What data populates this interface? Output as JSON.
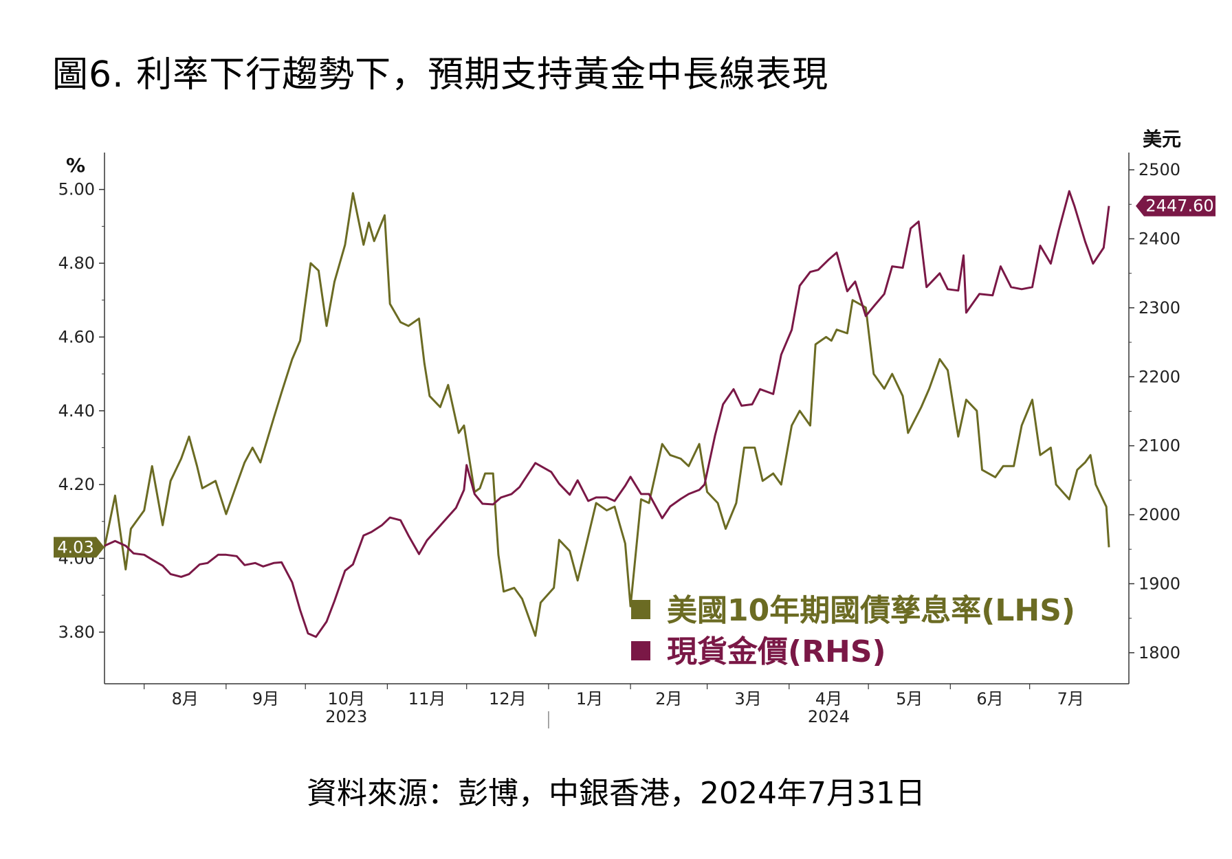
{
  "title": "圖6. 利率下行趨勢下，預期支持黃金中長線表現",
  "source": "資料來源：彭博，中銀香港，2024年7月31日",
  "colors": {
    "yield": "#6b6b23",
    "gold": "#7a1846",
    "axis": "#333333"
  },
  "chart_data": {
    "type": "line",
    "x_tick_labels": [
      "8月",
      "9月",
      "10月",
      "11月",
      "12月",
      "1月",
      "2月",
      "3月",
      "4月",
      "5月",
      "6月",
      "7月"
    ],
    "year_labels": [
      "2023",
      "2024"
    ],
    "left_axis": {
      "unit": "%",
      "ticks": [
        "3.80",
        "4.00",
        "4.20",
        "4.40",
        "4.60",
        "4.80",
        "5.00"
      ],
      "ylim": [
        3.66,
        5.1
      ]
    },
    "right_axis": {
      "unit": "美元",
      "ticks": [
        "1800",
        "1900",
        "2000",
        "2100",
        "2200",
        "2300",
        "2400",
        "2500"
      ],
      "ylim": [
        1755,
        2525
      ]
    },
    "last_value_tags": {
      "yield": "4.03",
      "gold": "2447.60"
    },
    "x_range": [
      "2023-07-17",
      "2024-07-31"
    ],
    "series": [
      {
        "name": "美國10年期國債孳息率(LHS)",
        "axis": "left",
        "points": [
          [
            "2023-07-17",
            4.03
          ],
          [
            "2023-07-21",
            4.17
          ],
          [
            "2023-07-25",
            3.97
          ],
          [
            "2023-07-27",
            4.08
          ],
          [
            "2023-08-01",
            4.13
          ],
          [
            "2023-08-04",
            4.25
          ],
          [
            "2023-08-08",
            4.09
          ],
          [
            "2023-08-11",
            4.21
          ],
          [
            "2023-08-15",
            4.27
          ],
          [
            "2023-08-18",
            4.33
          ],
          [
            "2023-08-21",
            4.25
          ],
          [
            "2023-08-23",
            4.19
          ],
          [
            "2023-08-28",
            4.21
          ],
          [
            "2023-09-01",
            4.12
          ],
          [
            "2023-09-05",
            4.2
          ],
          [
            "2023-09-08",
            4.26
          ],
          [
            "2023-09-11",
            4.3
          ],
          [
            "2023-09-14",
            4.26
          ],
          [
            "2023-09-19",
            4.38
          ],
          [
            "2023-09-22",
            4.45
          ],
          [
            "2023-09-26",
            4.54
          ],
          [
            "2023-09-29",
            4.59
          ],
          [
            "2023-10-03",
            4.8
          ],
          [
            "2023-10-06",
            4.78
          ],
          [
            "2023-10-09",
            4.63
          ],
          [
            "2023-10-12",
            4.75
          ],
          [
            "2023-10-16",
            4.85
          ],
          [
            "2023-10-19",
            4.99
          ],
          [
            "2023-10-23",
            4.85
          ],
          [
            "2023-10-25",
            4.91
          ],
          [
            "2023-10-27",
            4.86
          ],
          [
            "2023-10-31",
            4.93
          ],
          [
            "2023-11-02",
            4.69
          ],
          [
            "2023-11-06",
            4.64
          ],
          [
            "2023-11-09",
            4.63
          ],
          [
            "2023-11-13",
            4.65
          ],
          [
            "2023-11-15",
            4.53
          ],
          [
            "2023-11-17",
            4.44
          ],
          [
            "2023-11-21",
            4.41
          ],
          [
            "2023-11-24",
            4.47
          ],
          [
            "2023-11-28",
            4.34
          ],
          [
            "2023-11-30",
            4.36
          ],
          [
            "2023-12-04",
            4.18
          ],
          [
            "2023-12-06",
            4.19
          ],
          [
            "2023-12-08",
            4.23
          ],
          [
            "2023-12-11",
            4.23
          ],
          [
            "2023-12-13",
            4.01
          ],
          [
            "2023-12-15",
            3.91
          ],
          [
            "2023-12-19",
            3.92
          ],
          [
            "2023-12-22",
            3.89
          ],
          [
            "2023-12-27",
            3.79
          ],
          [
            "2023-12-29",
            3.88
          ],
          [
            "2024-01-03",
            3.92
          ],
          [
            "2024-01-05",
            4.05
          ],
          [
            "2024-01-09",
            4.02
          ],
          [
            "2024-01-12",
            3.94
          ],
          [
            "2024-01-16",
            4.06
          ],
          [
            "2024-01-19",
            4.15
          ],
          [
            "2024-01-23",
            4.13
          ],
          [
            "2024-01-26",
            4.14
          ],
          [
            "2024-01-30",
            4.04
          ],
          [
            "2024-02-01",
            3.87
          ],
          [
            "2024-02-05",
            4.16
          ],
          [
            "2024-02-08",
            4.15
          ],
          [
            "2024-02-13",
            4.31
          ],
          [
            "2024-02-16",
            4.28
          ],
          [
            "2024-02-20",
            4.27
          ],
          [
            "2024-02-23",
            4.25
          ],
          [
            "2024-02-27",
            4.31
          ],
          [
            "2024-03-01",
            4.18
          ],
          [
            "2024-03-05",
            4.15
          ],
          [
            "2024-03-08",
            4.08
          ],
          [
            "2024-03-12",
            4.15
          ],
          [
            "2024-03-15",
            4.3
          ],
          [
            "2024-03-19",
            4.3
          ],
          [
            "2024-03-22",
            4.21
          ],
          [
            "2024-03-26",
            4.23
          ],
          [
            "2024-03-29",
            4.2
          ],
          [
            "2024-04-02",
            4.36
          ],
          [
            "2024-04-05",
            4.4
          ],
          [
            "2024-04-09",
            4.36
          ],
          [
            "2024-04-11",
            4.58
          ],
          [
            "2024-04-15",
            4.6
          ],
          [
            "2024-04-17",
            4.59
          ],
          [
            "2024-04-19",
            4.62
          ],
          [
            "2024-04-23",
            4.61
          ],
          [
            "2024-04-25",
            4.7
          ],
          [
            "2024-04-30",
            4.68
          ],
          [
            "2024-05-03",
            4.5
          ],
          [
            "2024-05-07",
            4.46
          ],
          [
            "2024-05-10",
            4.5
          ],
          [
            "2024-05-14",
            4.44
          ],
          [
            "2024-05-16",
            4.34
          ],
          [
            "2024-05-21",
            4.41
          ],
          [
            "2024-05-24",
            4.46
          ],
          [
            "2024-05-28",
            4.54
          ],
          [
            "2024-05-31",
            4.51
          ],
          [
            "2024-06-04",
            4.33
          ],
          [
            "2024-06-07",
            4.43
          ],
          [
            "2024-06-11",
            4.4
          ],
          [
            "2024-06-13",
            4.24
          ],
          [
            "2024-06-18",
            4.22
          ],
          [
            "2024-06-21",
            4.25
          ],
          [
            "2024-06-25",
            4.25
          ],
          [
            "2024-06-28",
            4.36
          ],
          [
            "2024-07-02",
            4.43
          ],
          [
            "2024-07-05",
            4.28
          ],
          [
            "2024-07-09",
            4.3
          ],
          [
            "2024-07-11",
            4.2
          ],
          [
            "2024-07-16",
            4.16
          ],
          [
            "2024-07-19",
            4.24
          ],
          [
            "2024-07-22",
            4.26
          ],
          [
            "2024-07-24",
            4.28
          ],
          [
            "2024-07-26",
            4.2
          ],
          [
            "2024-07-30",
            4.14
          ],
          [
            "2024-07-31",
            4.03
          ]
        ]
      },
      {
        "name": "現貨金價(RHS)",
        "axis": "right",
        "points": [
          [
            "2023-07-17",
            1955
          ],
          [
            "2023-07-21",
            1962
          ],
          [
            "2023-07-25",
            1955
          ],
          [
            "2023-07-28",
            1944
          ],
          [
            "2023-08-01",
            1942
          ],
          [
            "2023-08-04",
            1935
          ],
          [
            "2023-08-08",
            1926
          ],
          [
            "2023-08-11",
            1914
          ],
          [
            "2023-08-15",
            1910
          ],
          [
            "2023-08-18",
            1914
          ],
          [
            "2023-08-22",
            1928
          ],
          [
            "2023-08-25",
            1930
          ],
          [
            "2023-08-29",
            1942
          ],
          [
            "2023-09-01",
            1942
          ],
          [
            "2023-09-05",
            1940
          ],
          [
            "2023-09-08",
            1927
          ],
          [
            "2023-09-12",
            1930
          ],
          [
            "2023-09-15",
            1925
          ],
          [
            "2023-09-19",
            1930
          ],
          [
            "2023-09-22",
            1931
          ],
          [
            "2023-09-26",
            1902
          ],
          [
            "2023-09-29",
            1862
          ],
          [
            "2023-10-02",
            1828
          ],
          [
            "2023-10-05",
            1823
          ],
          [
            "2023-10-09",
            1845
          ],
          [
            "2023-10-12",
            1875
          ],
          [
            "2023-10-16",
            1919
          ],
          [
            "2023-10-19",
            1928
          ],
          [
            "2023-10-23",
            1970
          ],
          [
            "2023-10-26",
            1975
          ],
          [
            "2023-10-30",
            1985
          ],
          [
            "2023-11-02",
            1996
          ],
          [
            "2023-11-06",
            1992
          ],
          [
            "2023-11-09",
            1970
          ],
          [
            "2023-11-13",
            1943
          ],
          [
            "2023-11-16",
            1963
          ],
          [
            "2023-11-20",
            1980
          ],
          [
            "2023-11-23",
            1993
          ],
          [
            "2023-11-27",
            2010
          ],
          [
            "2023-11-30",
            2036
          ],
          [
            "2023-12-01",
            2072
          ],
          [
            "2023-12-04",
            2030
          ],
          [
            "2023-12-07",
            2016
          ],
          [
            "2023-12-11",
            2015
          ],
          [
            "2023-12-14",
            2025
          ],
          [
            "2023-12-18",
            2030
          ],
          [
            "2023-12-21",
            2040
          ],
          [
            "2023-12-27",
            2075
          ],
          [
            "2024-01-02",
            2062
          ],
          [
            "2024-01-05",
            2045
          ],
          [
            "2024-01-09",
            2029
          ],
          [
            "2024-01-12",
            2050
          ],
          [
            "2024-01-16",
            2020
          ],
          [
            "2024-01-19",
            2025
          ],
          [
            "2024-01-23",
            2025
          ],
          [
            "2024-01-26",
            2020
          ],
          [
            "2024-01-30",
            2042
          ],
          [
            "2024-02-01",
            2055
          ],
          [
            "2024-02-05",
            2030
          ],
          [
            "2024-02-08",
            2030
          ],
          [
            "2024-02-13",
            1995
          ],
          [
            "2024-02-16",
            2012
          ],
          [
            "2024-02-20",
            2023
          ],
          [
            "2024-02-23",
            2030
          ],
          [
            "2024-02-27",
            2036
          ],
          [
            "2024-02-29",
            2044
          ],
          [
            "2024-03-04",
            2115
          ],
          [
            "2024-03-07",
            2160
          ],
          [
            "2024-03-11",
            2182
          ],
          [
            "2024-03-14",
            2158
          ],
          [
            "2024-03-18",
            2160
          ],
          [
            "2024-03-21",
            2182
          ],
          [
            "2024-03-26",
            2175
          ],
          [
            "2024-03-29",
            2232
          ],
          [
            "2024-04-02",
            2268
          ],
          [
            "2024-04-05",
            2332
          ],
          [
            "2024-04-09",
            2352
          ],
          [
            "2024-04-12",
            2355
          ],
          [
            "2024-04-16",
            2370
          ],
          [
            "2024-04-19",
            2380
          ],
          [
            "2024-04-23",
            2324
          ],
          [
            "2024-04-26",
            2338
          ],
          [
            "2024-04-30",
            2288
          ],
          [
            "2024-05-03",
            2302
          ],
          [
            "2024-05-07",
            2320
          ],
          [
            "2024-05-10",
            2360
          ],
          [
            "2024-05-14",
            2358
          ],
          [
            "2024-05-17",
            2415
          ],
          [
            "2024-05-20",
            2425
          ],
          [
            "2024-05-23",
            2330
          ],
          [
            "2024-05-28",
            2350
          ],
          [
            "2024-05-31",
            2327
          ],
          [
            "2024-06-04",
            2325
          ],
          [
            "2024-06-06",
            2376
          ],
          [
            "2024-06-07",
            2293
          ],
          [
            "2024-06-12",
            2320
          ],
          [
            "2024-06-17",
            2318
          ],
          [
            "2024-06-20",
            2360
          ],
          [
            "2024-06-24",
            2330
          ],
          [
            "2024-06-28",
            2327
          ],
          [
            "2024-07-02",
            2330
          ],
          [
            "2024-07-05",
            2390
          ],
          [
            "2024-07-09",
            2364
          ],
          [
            "2024-07-12",
            2412
          ],
          [
            "2024-07-16",
            2469
          ],
          [
            "2024-07-18",
            2447
          ],
          [
            "2024-07-22",
            2396
          ],
          [
            "2024-07-25",
            2364
          ],
          [
            "2024-07-29",
            2387
          ],
          [
            "2024-07-31",
            2447.6
          ]
        ]
      }
    ]
  }
}
